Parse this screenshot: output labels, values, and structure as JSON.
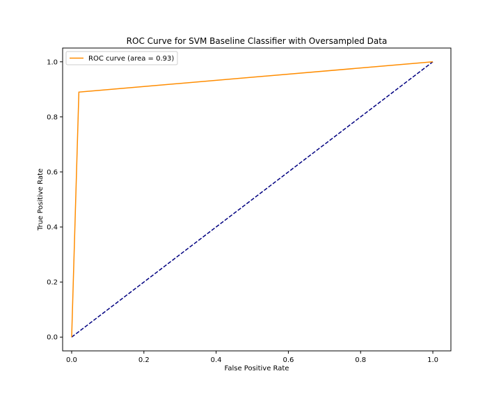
{
  "chart_data": {
    "type": "line",
    "title": "ROC Curve for SVM Baseline Classifier with Oversampled Data",
    "xlabel": "False Positive Rate",
    "ylabel": "True Positive Rate",
    "xlim": [
      -0.025,
      1.05
    ],
    "ylim": [
      -0.05,
      1.05
    ],
    "xticks": [
      0.0,
      0.2,
      0.4,
      0.6,
      0.8,
      1.0
    ],
    "yticks": [
      0.0,
      0.2,
      0.4,
      0.6,
      0.8,
      1.0
    ],
    "xtick_labels": [
      "0.0",
      "0.2",
      "0.4",
      "0.6",
      "0.8",
      "1.0"
    ],
    "ytick_labels": [
      "0.0",
      "0.2",
      "0.4",
      "0.6",
      "0.8",
      "1.0"
    ],
    "grid": false,
    "legend_position": "top-left",
    "series": [
      {
        "name": "ROC curve (area = 0.93)",
        "x": [
          0.0,
          0.02,
          1.0
        ],
        "y": [
          0.0,
          0.89,
          1.0
        ],
        "color": "#ff8c00",
        "style": "solid"
      },
      {
        "x": [
          0.0,
          1.0
        ],
        "y": [
          0.0,
          1.0
        ],
        "color": "#000080",
        "style": "dashed"
      }
    ]
  }
}
